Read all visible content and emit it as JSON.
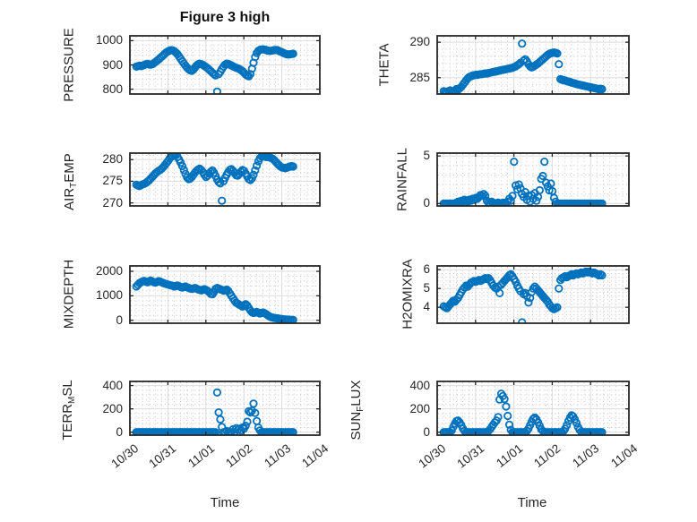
{
  "figure": {
    "title": "Figure 3 high",
    "xlabel": "Time",
    "x_tick_labels": [
      "10/30",
      "10/31",
      "11/01",
      "11/02",
      "11/03",
      "11/04"
    ],
    "x_range_days": [
      0,
      5
    ],
    "x_unit": "days since 10/30 00:00",
    "marker_color": "#0072BD",
    "axis_color": "#262626",
    "grid_color": "#dcdcdc",
    "minor_grid_color": "#bfbfbf",
    "background": "#ffffff"
  },
  "chart_data": [
    {
      "id": "pressure",
      "type": "scatter",
      "position": {
        "row": 0,
        "col": 0
      },
      "ylabel_plain": "PRESSURE",
      "ylabel_segments": [
        {
          "text": "PRESSURE",
          "sub": false
        }
      ],
      "yticks": [
        800,
        900,
        1000
      ],
      "ylim": [
        780,
        1020
      ],
      "x_start_day": 0.17,
      "x_step_day": 0.0417,
      "values": [
        893,
        895,
        897,
        895,
        897,
        900,
        903,
        904,
        902,
        901,
        903,
        907,
        912,
        917,
        922,
        928,
        934,
        940,
        946,
        952,
        956,
        959,
        961,
        960,
        957,
        951,
        944,
        935,
        925,
        915,
        906,
        897,
        889,
        882,
        878,
        876,
        881,
        889,
        897,
        903,
        905,
        903,
        900,
        896,
        891,
        886,
        880,
        874,
        868,
        862,
        857,
        790,
        862,
        872,
        883,
        893,
        901,
        905,
        904,
        901,
        898,
        894,
        891,
        888,
        886,
        883,
        879,
        874,
        868,
        861,
        856,
        853,
        862,
        884,
        909,
        932,
        949,
        958,
        962,
        964,
        964,
        963,
        961,
        959,
        958,
        958,
        960,
        961,
        962,
        961,
        958,
        955,
        952,
        949,
        946,
        944,
        943,
        944,
        945,
        946
      ]
    },
    {
      "id": "theta",
      "type": "scatter",
      "position": {
        "row": 0,
        "col": 1
      },
      "ylabel_plain": "THETA",
      "ylabel_segments": [
        {
          "text": "THETA",
          "sub": false
        }
      ],
      "yticks": [
        285,
        290
      ],
      "ylim": [
        282.7,
        290.9
      ],
      "x_start_day": 0.17,
      "x_step_day": 0.0417,
      "values": [
        283.1,
        283,
        282.9,
        283.1,
        283.2,
        283.1,
        283,
        283.2,
        283.4,
        283.3,
        283.5,
        283.7,
        284,
        284.3,
        284.6,
        284.9,
        285.1,
        285.2,
        285.3,
        285.35,
        285.4,
        285.4,
        285.45,
        285.5,
        285.5,
        285.55,
        285.6,
        285.6,
        285.65,
        285.7,
        285.75,
        285.8,
        285.85,
        285.9,
        285.95,
        286,
        286.05,
        286.1,
        286.15,
        286.2,
        286.25,
        286.3,
        286.35,
        286.4,
        286.5,
        286.6,
        286.75,
        286.9,
        287.1,
        289.8,
        287.4,
        287.6,
        287.3,
        286.9,
        286.6,
        286.45,
        286.55,
        286.7,
        286.85,
        287,
        287.2,
        287.4,
        287.6,
        287.8,
        288,
        288.2,
        288.35,
        288.45,
        288.5,
        288.55,
        288.5,
        288.4,
        286.9,
        284.8,
        284.7,
        284.65,
        284.6,
        284.5,
        284.45,
        284.4,
        284.3,
        284.25,
        284.2,
        284.1,
        284.05,
        284,
        283.95,
        283.9,
        283.85,
        283.8,
        283.75,
        283.7,
        283.65,
        283.6,
        283.55,
        283.5,
        283.45,
        283.4,
        283.45,
        283.4
      ]
    },
    {
      "id": "air_temp",
      "type": "scatter",
      "position": {
        "row": 1,
        "col": 0
      },
      "ylabel_plain": "AIR_TEMP",
      "ylabel_segments": [
        {
          "text": "AIR",
          "sub": false
        },
        {
          "text": "T",
          "sub": true
        },
        {
          "text": "EMP",
          "sub": false
        }
      ],
      "yticks": [
        270,
        275,
        280
      ],
      "ylim": [
        269.3,
        281.5
      ],
      "x_start_day": 0.17,
      "x_step_day": 0.0417,
      "values": [
        274.2,
        274,
        273.9,
        274.1,
        274.3,
        274.4,
        274.6,
        274.9,
        275.2,
        275.6,
        276,
        276.4,
        276.8,
        277.1,
        277.4,
        277.6,
        277.9,
        278.3,
        278.7,
        279.2,
        279.7,
        280.2,
        280.6,
        280.9,
        281.1,
        281,
        280.6,
        280,
        279.3,
        278.5,
        277.6,
        276.7,
        275.9,
        275.5,
        275.6,
        276,
        276.5,
        277,
        277.4,
        277.7,
        277.9,
        277.6,
        277.1,
        276.5,
        276,
        276.3,
        276.8,
        277.2,
        277.5,
        277,
        276.2,
        275.4,
        274.8,
        274.5,
        270.5,
        275,
        275.8,
        276.5,
        277.1,
        277.6,
        277.8,
        277.4,
        276.9,
        276.4,
        276.3,
        276.7,
        277.2,
        277.6,
        277.4,
        276.8,
        276.1,
        275.5,
        275.3,
        275.7,
        276.5,
        277.5,
        278.6,
        279.6,
        280.3,
        280.7,
        280.8,
        280.7,
        280.6,
        280.6,
        280.5,
        280.4,
        280.2,
        279.9,
        279.5,
        279.1,
        278.7,
        278.4,
        278.2,
        278.1,
        278,
        278.1,
        278.3,
        278.4,
        278.5,
        278.4
      ]
    },
    {
      "id": "rainfall",
      "type": "scatter",
      "position": {
        "row": 1,
        "col": 1
      },
      "ylabel_plain": "RAINFALL",
      "ylabel_segments": [
        {
          "text": "RAINFALL",
          "sub": false
        }
      ],
      "yticks": [
        0,
        5
      ],
      "ylim": [
        -0.25,
        5.3
      ],
      "x_start_day": 0.17,
      "x_step_day": 0.0417,
      "values": [
        0,
        0,
        0,
        0,
        0,
        0,
        0,
        0,
        0.1,
        0.2,
        0.1,
        0.3,
        0.2,
        0.4,
        0.3,
        0.2,
        0.4,
        0.3,
        0.5,
        0.4,
        0.6,
        0.5,
        0.7,
        0.9,
        0.8,
        1,
        0.8,
        0.3,
        0.1,
        0,
        0.2,
        0.1,
        0,
        0,
        0.1,
        0,
        0,
        0.1,
        0,
        0,
        0.2,
        0.5,
        0.3,
        0.8,
        4.4,
        1.9,
        1.5,
        2,
        1.6,
        1,
        0.7,
        1.2,
        0.4,
        0.8,
        0.2,
        0.9,
        0.5,
        1.1,
        0.3,
        0.7,
        1.4,
        2.6,
        2.9,
        4.4,
        2.2,
        1.8,
        1.4,
        2.1,
        1.3,
        0.6,
        0.2,
        0,
        0,
        0,
        0,
        0,
        0,
        0,
        0,
        0,
        0,
        0,
        0,
        0,
        0,
        0,
        0,
        0,
        0,
        0,
        0,
        0,
        0,
        0,
        0,
        0,
        0,
        0,
        0,
        0
      ]
    },
    {
      "id": "mixdepth",
      "type": "scatter",
      "position": {
        "row": 2,
        "col": 0
      },
      "ylabel_plain": "MIXDEPTH",
      "ylabel_segments": [
        {
          "text": "MIXDEPTH",
          "sub": false
        }
      ],
      "yticks": [
        0,
        1000,
        2000
      ],
      "ylim": [
        -120,
        2220
      ],
      "x_start_day": 0.17,
      "x_step_day": 0.0417,
      "values": [
        1380,
        1450,
        1520,
        1560,
        1590,
        1610,
        1580,
        1550,
        1600,
        1620,
        1590,
        1560,
        1540,
        1570,
        1600,
        1580,
        1550,
        1520,
        1500,
        1480,
        1460,
        1440,
        1420,
        1400,
        1380,
        1400,
        1420,
        1390,
        1360,
        1340,
        1360,
        1380,
        1350,
        1320,
        1300,
        1280,
        1300,
        1320,
        1290,
        1260,
        1240,
        1220,
        1250,
        1270,
        1240,
        1200,
        1150,
        1080,
        1060,
        1150,
        1280,
        1320,
        1300,
        1270,
        1240,
        1210,
        1230,
        1250,
        1200,
        1100,
        1000,
        900,
        800,
        720,
        680,
        640,
        600,
        560,
        620,
        660,
        600,
        500,
        400,
        330,
        300,
        320,
        340,
        310,
        280,
        300,
        320,
        290,
        250,
        200,
        160,
        130,
        110,
        100,
        90,
        80,
        70,
        60,
        50,
        40,
        35,
        30,
        25,
        20,
        20,
        15
      ]
    },
    {
      "id": "h2omixra",
      "type": "scatter",
      "position": {
        "row": 2,
        "col": 1
      },
      "ylabel_plain": "H2OMIXRA",
      "ylabel_segments": [
        {
          "text": "H2OMIXRA",
          "sub": false
        }
      ],
      "yticks": [
        4,
        5,
        6
      ],
      "ylim": [
        3.15,
        6.2
      ],
      "x_start_day": 0.17,
      "x_step_day": 0.0417,
      "values": [
        4.05,
        4,
        3.95,
        4.05,
        4.15,
        4.25,
        4.35,
        4.3,
        4.4,
        4.5,
        4.65,
        4.8,
        4.95,
        5.05,
        5.15,
        5.1,
        5.2,
        5.3,
        5.35,
        5.4,
        5.35,
        5.4,
        5.45,
        5.4,
        5.45,
        5.5,
        5.55,
        5.5,
        5.55,
        5.45,
        5.3,
        5.15,
        5.05,
        5,
        5.1,
        4.75,
        5.2,
        5.3,
        5.4,
        5.5,
        5.6,
        5.7,
        5.75,
        5.65,
        5.5,
        5.35,
        5.15,
        5,
        4.85,
        3.2,
        4.7,
        4.75,
        4.6,
        4.25,
        4.5,
        4.8,
        5,
        5.1,
        5,
        4.9,
        4.8,
        4.7,
        4.6,
        4.5,
        4.4,
        4.3,
        4.15,
        4.05,
        3.95,
        3.9,
        3.95,
        4,
        5,
        5.45,
        5.55,
        5.6,
        5.65,
        5.6,
        5.65,
        5.7,
        5.75,
        5.7,
        5.75,
        5.8,
        5.75,
        5.8,
        5.85,
        5.8,
        5.85,
        5.9,
        5.85,
        5.9,
        5.85,
        5.8,
        5.85,
        5.8,
        5.75,
        5.7,
        5.75,
        5.7
      ]
    },
    {
      "id": "terr_msl",
      "type": "scatter",
      "position": {
        "row": 3,
        "col": 0
      },
      "ylabel_plain": "TERR_MSL",
      "ylabel_segments": [
        {
          "text": "TERR",
          "sub": false
        },
        {
          "text": "M",
          "sub": true
        },
        {
          "text": "SL",
          "sub": false
        }
      ],
      "yticks": [
        0,
        200,
        400
      ],
      "ylim": [
        -25,
        435
      ],
      "x_start_day": 0.17,
      "x_step_day": 0.0417,
      "values": [
        0,
        0,
        0,
        0,
        0,
        0,
        0,
        0,
        0,
        0,
        0,
        0,
        0,
        0,
        0,
        0,
        0,
        0,
        0,
        0,
        0,
        0,
        0,
        0,
        0,
        0,
        0,
        0,
        0,
        0,
        0,
        0,
        0,
        0,
        0,
        0,
        0,
        0,
        0,
        0,
        0,
        0,
        0,
        0,
        0,
        0,
        0,
        0,
        0,
        0,
        0,
        340,
        170,
        110,
        45,
        0,
        0,
        10,
        0,
        0,
        0,
        25,
        0,
        35,
        20,
        30,
        15,
        40,
        30,
        55,
        90,
        180,
        170,
        185,
        245,
        165,
        95,
        40,
        15,
        0,
        0,
        0,
        0,
        0,
        0,
        0,
        0,
        0,
        0,
        0,
        0,
        0,
        0,
        0,
        0,
        0,
        0,
        0,
        0,
        0
      ]
    },
    {
      "id": "sun_flux",
      "type": "scatter",
      "position": {
        "row": 3,
        "col": 1
      },
      "ylabel_plain": "SUN_FLUX",
      "ylabel_segments": [
        {
          "text": "SUN",
          "sub": false
        },
        {
          "text": "F",
          "sub": true
        },
        {
          "text": "LUX",
          "sub": false
        }
      ],
      "yticks": [
        0,
        200,
        400
      ],
      "ylim": [
        -25,
        435
      ],
      "x_start_day": 0.17,
      "x_step_day": 0.0417,
      "values": [
        0,
        0,
        0,
        0,
        0,
        15,
        45,
        75,
        95,
        100,
        85,
        60,
        30,
        10,
        0,
        0,
        0,
        0,
        0,
        0,
        0,
        0,
        0,
        0,
        0,
        0,
        0,
        0,
        10,
        25,
        45,
        65,
        85,
        100,
        130,
        280,
        330,
        310,
        285,
        220,
        140,
        65,
        20,
        0,
        0,
        0,
        0,
        0,
        0,
        0,
        0,
        0,
        10,
        30,
        60,
        90,
        115,
        125,
        110,
        85,
        55,
        25,
        10,
        0,
        0,
        0,
        0,
        0,
        0,
        0,
        0,
        0,
        0,
        0,
        0,
        10,
        30,
        60,
        95,
        125,
        145,
        135,
        110,
        80,
        45,
        20,
        5,
        0,
        0,
        0,
        0,
        0,
        0,
        0,
        0,
        0,
        0,
        0,
        0,
        0
      ]
    }
  ]
}
